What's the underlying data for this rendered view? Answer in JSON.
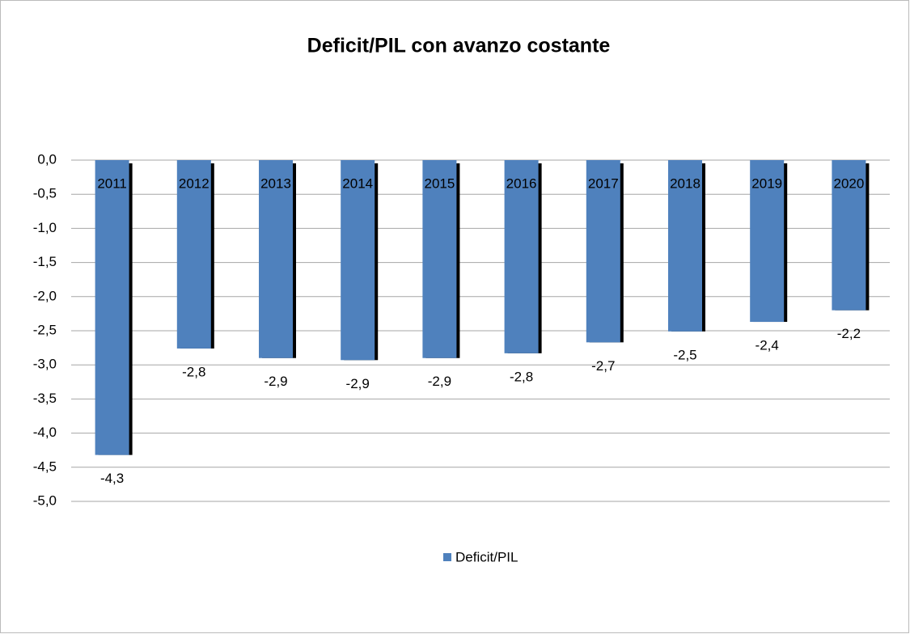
{
  "chart_data": {
    "type": "bar",
    "title": "Deficit/PIL con avanzo costante",
    "categories": [
      "2011",
      "2012",
      "2013",
      "2014",
      "2015",
      "2016",
      "2017",
      "2018",
      "2019",
      "2020"
    ],
    "series": [
      {
        "name": "Deficit/PIL",
        "color": "#4f81bd",
        "values": [
          -4.32,
          -2.76,
          -2.9,
          -2.93,
          -2.9,
          -2.83,
          -2.67,
          -2.51,
          -2.37,
          -2.2
        ],
        "value_labels": [
          "-4,3",
          "-2,8",
          "-2,9",
          "-2,9",
          "-2,9",
          "-2,8",
          "-2,7",
          "-2,5",
          "-2,4",
          "-2,2"
        ]
      }
    ],
    "ylim": [
      -5,
      0
    ],
    "yticks": [
      {
        "value": 0,
        "label": "0,0"
      },
      {
        "value": -0.5,
        "label": "-0,5"
      },
      {
        "value": -1,
        "label": "-1,0"
      },
      {
        "value": -1.5,
        "label": "-1,5"
      },
      {
        "value": -2,
        "label": "-2,0"
      },
      {
        "value": -2.5,
        "label": "-2,5"
      },
      {
        "value": -3,
        "label": "-3,0"
      },
      {
        "value": -3.5,
        "label": "-3,5"
      },
      {
        "value": -4,
        "label": "-4,0"
      },
      {
        "value": -4.5,
        "label": "-4,5"
      },
      {
        "value": -5,
        "label": "-5,0"
      }
    ],
    "grid": true,
    "legend": "bottom"
  }
}
